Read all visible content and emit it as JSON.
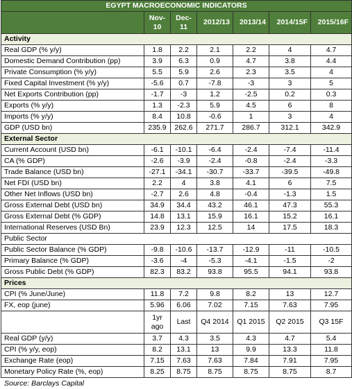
{
  "table": {
    "title": "EGYPT MACROECONOMIC  INDICATORS",
    "columns": [
      "Nov-10",
      "Dec-11",
      "2012/13",
      "2013/14",
      "2014/15F",
      "2015/16F"
    ],
    "rows": [
      {
        "section": "Activity"
      },
      {
        "label": "Real GDP (% y/y)",
        "values": [
          "1.8",
          "2.2",
          "2.1",
          "2.2",
          "4",
          "4.7"
        ]
      },
      {
        "label": "Domestic Demand Contribution (pp)",
        "values": [
          "3.9",
          "6.3",
          "0.9",
          "4.7",
          "3.8",
          "4.4"
        ]
      },
      {
        "label": "Private Consumption (% y/y)",
        "values": [
          "5.5",
          "5.9",
          "2.6",
          "2.3",
          "3.5",
          "4"
        ]
      },
      {
        "label": "Fixed Capital Investment (% y/y)",
        "values": [
          "-5.6",
          "0.7",
          "-7.8",
          "-3",
          "3",
          "5"
        ]
      },
      {
        "label": "Net Exports Contribution (pp)",
        "values": [
          "-1.7",
          "-3",
          "1.2",
          "-2.5",
          "0.2",
          "0.3"
        ]
      },
      {
        "label": "Exports (% y/y)",
        "values": [
          "1.3",
          "-2.3",
          "5.9",
          "4.5",
          "6",
          "8"
        ]
      },
      {
        "label": "Imports (% y/y)",
        "values": [
          "8.4",
          "10.8",
          "-0.6",
          "1",
          "3",
          "4"
        ]
      },
      {
        "label": "GDP (USD bn)",
        "values": [
          "235.9",
          "262.6",
          "271.7",
          "286.7",
          "312.1",
          "342.9"
        ]
      },
      {
        "section": "External Sector"
      },
      {
        "label": "Current Account (USD bn)",
        "values": [
          "-6.1",
          "-10.1",
          "-6.4",
          "-2.4",
          "-7.4",
          "-11.4"
        ]
      },
      {
        "label": "CA (% GDP)",
        "values": [
          "-2.6",
          "-3.9",
          "-2.4",
          "-0.8",
          "-2.4",
          "-3.3"
        ]
      },
      {
        "label": "Trade Balance (USD bn)",
        "values": [
          "-27.1",
          "-34.1",
          "-30.7",
          "-33.7",
          "-39.5",
          "-49.8"
        ]
      },
      {
        "label": "Net FDI (USD bn)",
        "values": [
          "2.2",
          "4",
          "3.8",
          "4.1",
          "6",
          "7.5"
        ]
      },
      {
        "label": "Other Net Inflows (USD bn)",
        "values": [
          "-2.7",
          "2.6",
          "4.8",
          "-0.4",
          "-1.3",
          "1.5"
        ]
      },
      {
        "label": "Gross External Debt (USD bn)",
        "values": [
          "34.9",
          "34.4",
          "43.2",
          "46.1",
          "47.3",
          "55.3"
        ]
      },
      {
        "label": "Gross External Debt (% GDP)",
        "values": [
          "14.8",
          "13.1",
          "15.9",
          "16.1",
          "15.2",
          "16.1"
        ]
      },
      {
        "label": "International Reserves (USD Bn)",
        "values": [
          "23.9",
          "12.3",
          "12.5",
          "14",
          "17.5",
          "18.3"
        ]
      },
      {
        "subsection": "Public Sector"
      },
      {
        "label": "Public Sector Balance (% GDP)",
        "values": [
          "-9.8",
          "-10.6",
          "-13.7",
          "-12.9",
          "-11",
          "-10.5"
        ]
      },
      {
        "label": "Primary Balance (% GDP)",
        "values": [
          "-3.6",
          "-4",
          "-5.3",
          "-4.1",
          "-1.5",
          "-2"
        ]
      },
      {
        "label": "Gross Public Debt (% GDP)",
        "values": [
          "82.3",
          "83.2",
          "93.8",
          "95.5",
          "94.1",
          "93.8"
        ]
      },
      {
        "section": "Prices"
      },
      {
        "label": "CPI (% June/June)",
        "values": [
          "11.8",
          "7.2",
          "9.8",
          "8.2",
          "13",
          "12.7"
        ]
      },
      {
        "label": "FX, eop (june)",
        "values": [
          "5.96",
          "6.06",
          "7.02",
          "7.15",
          "7.63",
          "7.95"
        ]
      },
      {
        "header": [
          "1yr ago",
          "Last",
          "Q4 2014",
          "Q1 2015",
          "Q2 2015",
          "Q3 15F"
        ]
      },
      {
        "label": "Real GDP (y/y)",
        "values": [
          "3.7",
          "4.3",
          "3.5",
          "4.3",
          "4.7",
          "5.4"
        ]
      },
      {
        "label": "CPI (% y/y, eop)",
        "values": [
          "8.2",
          "13.1",
          "13",
          "9.9",
          "13.3",
          "11.8"
        ]
      },
      {
        "label": "Exchange Rate (eop)",
        "values": [
          "7.15",
          "7.63",
          "7.63",
          "7.84",
          "7.91",
          "7.95"
        ]
      },
      {
        "label": "Monetary Policy Rate (%, eop)",
        "values": [
          "8.25",
          "8.75",
          "8.75",
          "8.75",
          "8.75",
          "8.7"
        ]
      }
    ],
    "source": "Source: Barclays Capital"
  }
}
